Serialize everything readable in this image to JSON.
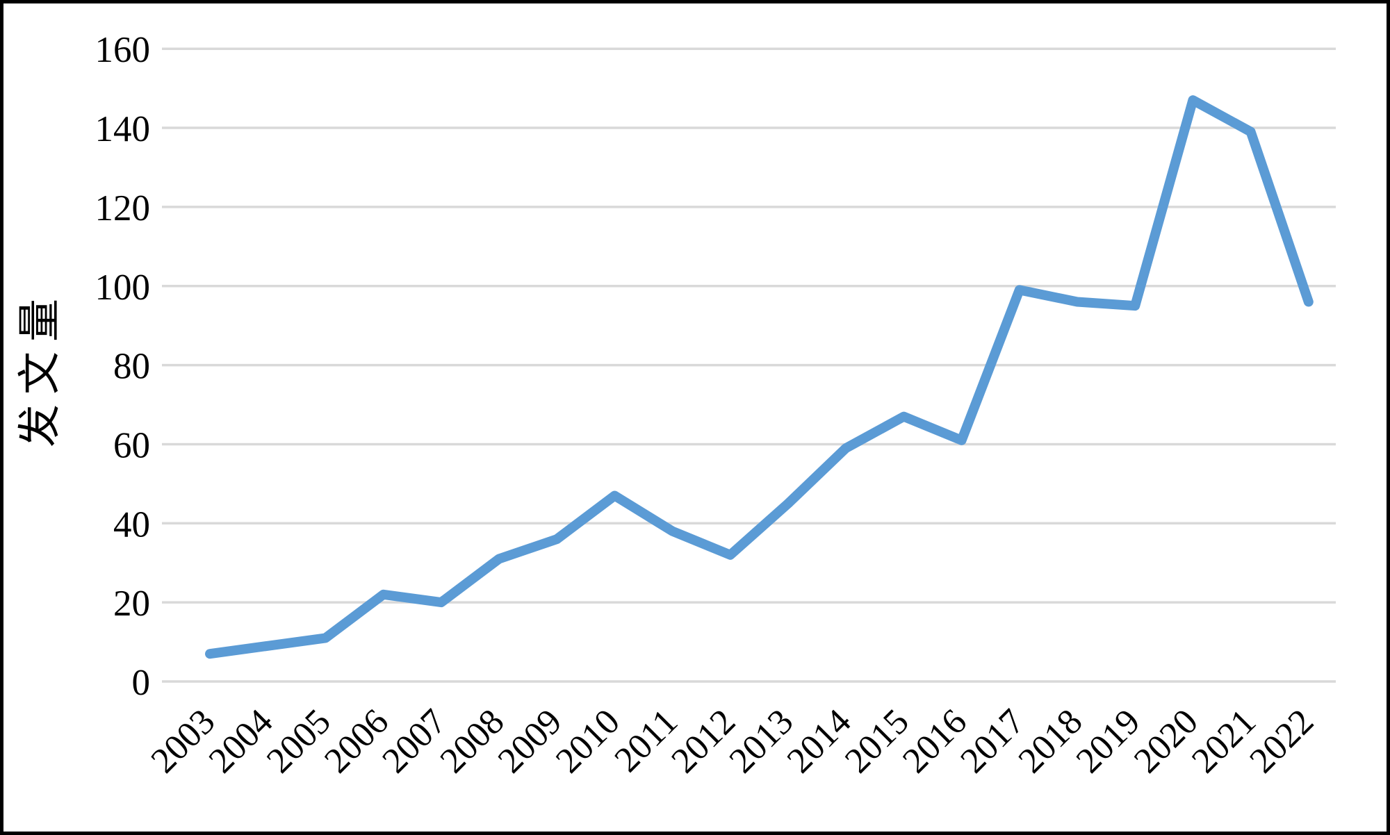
{
  "frame": {
    "background_color": "#ffffff",
    "border_color": "#000000"
  },
  "chart_data": {
    "type": "line",
    "title": "",
    "xlabel": "",
    "ylabel": "发文量",
    "categories": [
      "2003",
      "2004",
      "2005",
      "2006",
      "2007",
      "2008",
      "2009",
      "2010",
      "2011",
      "2012",
      "2013",
      "2014",
      "2015",
      "2016",
      "2017",
      "2018",
      "2019",
      "2020",
      "2021",
      "2022"
    ],
    "series": [
      {
        "name": "发文量",
        "values": [
          7,
          9,
          11,
          22,
          20,
          31,
          36,
          47,
          38,
          32,
          45,
          59,
          67,
          61,
          99,
          96,
          95,
          147,
          139,
          96
        ]
      }
    ],
    "ylim": [
      0,
      160
    ],
    "yticks": [
      0,
      20,
      40,
      60,
      80,
      100,
      120,
      140,
      160
    ],
    "grid": "horizontal",
    "legend": "none",
    "x_tick_rotation_deg": -45,
    "colors": {
      "line": "#5B9BD5",
      "gridline": "#D9D9D9",
      "text": "#000000"
    }
  }
}
